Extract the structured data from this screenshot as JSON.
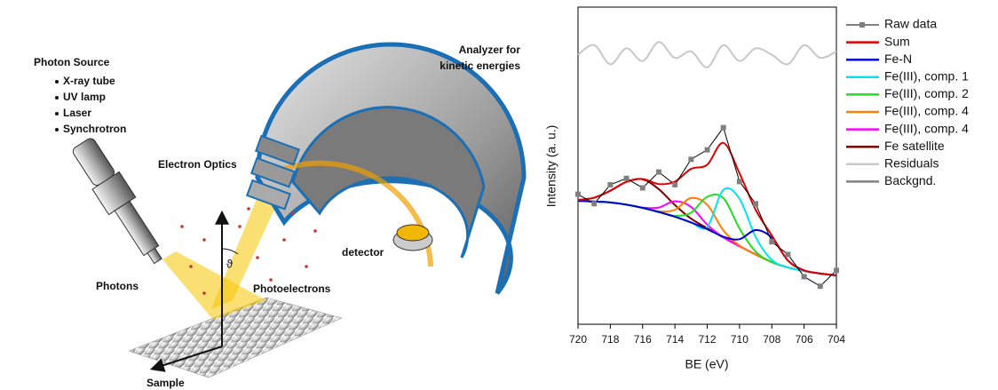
{
  "diagram": {
    "photon_source": "Photon Source",
    "sources": [
      "X-ray tube",
      "UV lamp",
      "Laser",
      "Synchrotron"
    ],
    "analyzer": [
      "Analyzer for",
      "kinetic energies"
    ],
    "electron_optics": "Electron Optics",
    "detector": "detector",
    "photons": "Photons",
    "photoelectrons": "Photoelectrons",
    "sample": "Sample",
    "angle": "ϑ"
  },
  "chart_data": {
    "type": "line",
    "x_label": "BE (eV)",
    "y_label": "Intensity (a. u.)",
    "x": [
      720,
      719,
      718,
      717,
      716,
      715,
      714,
      713,
      712,
      711,
      710,
      709,
      708,
      707,
      706,
      705,
      704
    ],
    "xlim": [
      720,
      704
    ],
    "xticks": [
      720,
      718,
      716,
      714,
      712,
      710,
      708,
      706,
      704
    ],
    "ylim": [
      0,
      100
    ],
    "series": [
      {
        "name": "Raw data",
        "color": "#000000",
        "marker_color": "#808080",
        "values": [
          41,
          38,
          44,
          46,
          43,
          48,
          44,
          52,
          55,
          62,
          45,
          38,
          26,
          22,
          15,
          12,
          17
        ]
      },
      {
        "name": "Sum",
        "color": "#e00000",
        "values": [
          39.2,
          39.9,
          42.1,
          44.9,
          45.8,
          44.2,
          45.0,
          49.0,
          50.3,
          57.2,
          47.6,
          36.1,
          28.0,
          20.1,
          17.0,
          16.0,
          15.4
        ]
      },
      {
        "name": "Fe-N",
        "color": "#0000d0",
        "values": [
          38.9,
          38.7,
          38.4,
          37.7,
          36.7,
          35.4,
          33.9,
          32.1,
          30.0,
          27.6,
          26.8,
          29.7,
          27.3,
          20.1,
          17.0,
          16.0,
          15.4
        ]
      },
      {
        "name": "Fe(III), comp. 1",
        "color": "#00e5ee",
        "values": [
          38.9,
          38.7,
          38.4,
          37.7,
          36.7,
          35.4,
          33.9,
          32.1,
          30.7,
          42.4,
          39.6,
          27.5,
          20.3,
          17.9,
          16.8,
          16.0,
          15.4
        ]
      },
      {
        "name": "Fe(III), comp. 2",
        "color": "#22dd22",
        "values": [
          38.9,
          38.7,
          38.4,
          37.7,
          36.7,
          35.4,
          34.2,
          35.2,
          40.2,
          39.8,
          30.2,
          22.9,
          19.6,
          17.9,
          16.8,
          16.0,
          15.4
        ]
      },
      {
        "name": "Fe(III), comp. 4",
        "color": "#ff8000",
        "values": [
          38.9,
          38.7,
          38.4,
          37.7,
          36.7,
          35.6,
          36.1,
          39.8,
          37.7,
          29.6,
          24.8,
          22.0,
          19.6,
          17.9,
          16.8,
          16.0,
          15.4
        ]
      },
      {
        "name": "Fe(III), comp. 4",
        "color": "#ff00ff",
        "values": [
          38.9,
          38.7,
          38.4,
          37.7,
          36.8,
          36.8,
          38.8,
          37.0,
          31.4,
          27.4,
          24.6,
          22.0,
          19.6,
          17.9,
          16.8,
          16.0,
          15.4
        ]
      },
      {
        "name": "Fe satellite",
        "color": "#7a0000",
        "values": [
          39.2,
          39.9,
          42.1,
          44.9,
          45.7,
          42.6,
          37.6,
          33.3,
          30.3,
          27.4,
          24.6,
          22.0,
          19.6,
          17.9,
          16.8,
          16.0,
          15.4
        ]
      },
      {
        "name": "Residuals",
        "color": "#c8c8c8",
        "values": [
          85,
          88,
          82,
          87,
          83,
          89,
          84,
          86,
          81,
          88,
          83,
          87,
          85,
          82,
          88,
          84,
          86
        ]
      },
      {
        "name": "Backgnd.",
        "color": "#808080",
        "values": [
          38.9,
          38.7,
          38.4,
          37.7,
          36.7,
          35.4,
          33.9,
          32.1,
          30.0,
          27.4,
          24.6,
          22.0,
          19.6,
          17.9,
          16.8,
          16.0,
          15.4
        ]
      }
    ]
  }
}
